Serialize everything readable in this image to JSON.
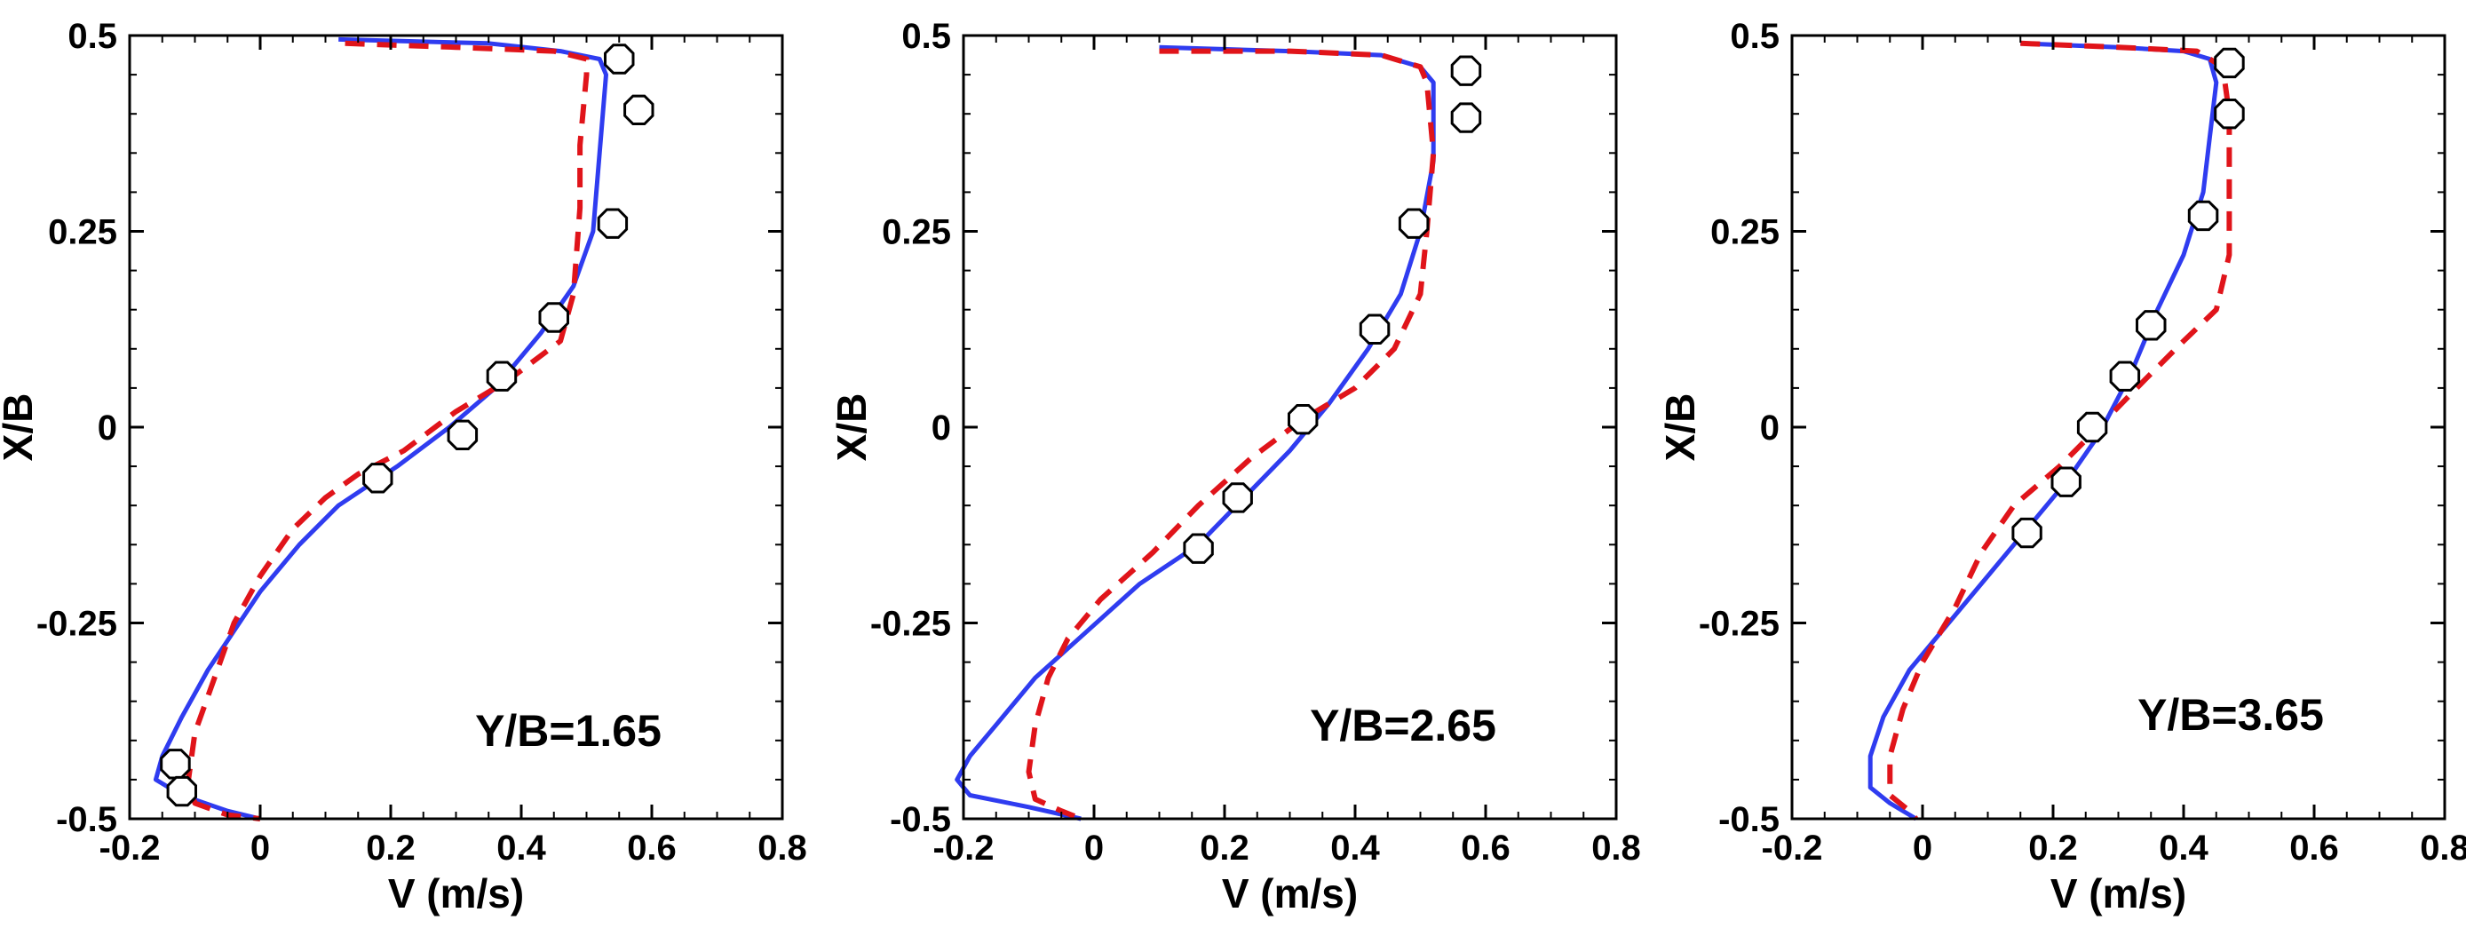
{
  "figure": {
    "legend": [],
    "colors": {
      "solid": "#2f3cf0",
      "dashed": "#e0141a",
      "markers": "#000000"
    }
  },
  "chart_data": [
    {
      "type": "line",
      "annotation": "Y/B=1.65",
      "xlabel": "V (m/s)",
      "ylabel": "X/B",
      "xlim": [
        -0.2,
        0.8
      ],
      "ylim": [
        -0.5,
        0.5
      ],
      "x_ticks": [
        -0.2,
        0,
        0.2,
        0.4,
        0.6,
        0.8
      ],
      "x_tick_labels": [
        "-0.2",
        "0",
        "0.2",
        "0.4",
        "0.6",
        "0.8"
      ],
      "y_ticks": [
        -0.5,
        -0.25,
        0,
        0.25,
        0.5
      ],
      "y_tick_labels": [
        "-0.5",
        "-0.25",
        "0",
        "0.25",
        "0.5"
      ],
      "series": [
        {
          "name": "solid",
          "style": "solid",
          "points": [
            [
              0.12,
              0.495
            ],
            [
              0.35,
              0.49
            ],
            [
              0.46,
              0.48
            ],
            [
              0.52,
              0.47
            ],
            [
              0.53,
              0.45
            ],
            [
              0.52,
              0.35
            ],
            [
              0.51,
              0.25
            ],
            [
              0.48,
              0.18
            ],
            [
              0.43,
              0.12
            ],
            [
              0.36,
              0.05
            ],
            [
              0.29,
              0.0
            ],
            [
              0.21,
              -0.05
            ],
            [
              0.12,
              -0.1
            ],
            [
              0.06,
              -0.15
            ],
            [
              0.0,
              -0.21
            ],
            [
              -0.04,
              -0.26
            ],
            [
              -0.08,
              -0.31
            ],
            [
              -0.12,
              -0.37
            ],
            [
              -0.15,
              -0.42
            ],
            [
              -0.16,
              -0.45
            ],
            [
              -0.12,
              -0.47
            ],
            [
              -0.05,
              -0.49
            ],
            [
              0.0,
              -0.5
            ]
          ]
        },
        {
          "name": "dashed",
          "style": "dashed",
          "points": [
            [
              0.13,
              0.49
            ],
            [
              0.3,
              0.485
            ],
            [
              0.45,
              0.48
            ],
            [
              0.5,
              0.47
            ],
            [
              0.5,
              0.45
            ],
            [
              0.49,
              0.36
            ],
            [
              0.49,
              0.28
            ],
            [
              0.48,
              0.17
            ],
            [
              0.46,
              0.11
            ],
            [
              0.38,
              0.06
            ],
            [
              0.3,
              0.02
            ],
            [
              0.22,
              -0.03
            ],
            [
              0.15,
              -0.06
            ],
            [
              0.1,
              -0.09
            ],
            [
              0.05,
              -0.13
            ],
            [
              0.0,
              -0.19
            ],
            [
              -0.04,
              -0.25
            ],
            [
              -0.07,
              -0.32
            ],
            [
              -0.1,
              -0.39
            ],
            [
              -0.11,
              -0.45
            ],
            [
              -0.1,
              -0.48
            ],
            [
              -0.05,
              -0.495
            ],
            [
              0.0,
              -0.5
            ]
          ]
        }
      ],
      "markers": [
        [
          0.55,
          0.47
        ],
        [
          0.58,
          0.405
        ],
        [
          0.54,
          0.26
        ],
        [
          0.45,
          0.14
        ],
        [
          0.37,
          0.065
        ],
        [
          0.31,
          -0.01
        ],
        [
          0.18,
          -0.065
        ],
        [
          -0.13,
          -0.43
        ],
        [
          -0.12,
          -0.465
        ]
      ]
    },
    {
      "type": "line",
      "annotation": "Y/B=2.65",
      "xlabel": "V (m/s)",
      "ylabel": "X/B",
      "xlim": [
        -0.2,
        0.8
      ],
      "ylim": [
        -0.5,
        0.5
      ],
      "x_ticks": [
        -0.2,
        0,
        0.2,
        0.4,
        0.6,
        0.8
      ],
      "x_tick_labels": [
        "-0.2",
        "0",
        "0.2",
        "0.4",
        "0.6",
        "0.8"
      ],
      "y_ticks": [
        -0.5,
        -0.25,
        0,
        0.25,
        0.5
      ],
      "y_tick_labels": [
        "-0.5",
        "-0.25",
        "0",
        "0.25",
        "0.5"
      ],
      "series": [
        {
          "name": "solid",
          "style": "solid",
          "points": [
            [
              0.1,
              0.485
            ],
            [
              0.3,
              0.48
            ],
            [
              0.44,
              0.475
            ],
            [
              0.5,
              0.46
            ],
            [
              0.52,
              0.44
            ],
            [
              0.52,
              0.34
            ],
            [
              0.5,
              0.25
            ],
            [
              0.47,
              0.17
            ],
            [
              0.42,
              0.1
            ],
            [
              0.36,
              0.03
            ],
            [
              0.3,
              -0.03
            ],
            [
              0.23,
              -0.09
            ],
            [
              0.16,
              -0.15
            ],
            [
              0.07,
              -0.2
            ],
            [
              -0.01,
              -0.26
            ],
            [
              -0.09,
              -0.32
            ],
            [
              -0.15,
              -0.38
            ],
            [
              -0.19,
              -0.42
            ],
            [
              -0.21,
              -0.45
            ],
            [
              -0.19,
              -0.47
            ],
            [
              -0.1,
              -0.485
            ],
            [
              -0.02,
              -0.5
            ]
          ]
        },
        {
          "name": "dashed",
          "style": "dashed",
          "points": [
            [
              0.1,
              0.48
            ],
            [
              0.3,
              0.48
            ],
            [
              0.44,
              0.475
            ],
            [
              0.5,
              0.46
            ],
            [
              0.51,
              0.44
            ],
            [
              0.52,
              0.35
            ],
            [
              0.51,
              0.25
            ],
            [
              0.5,
              0.17
            ],
            [
              0.46,
              0.1
            ],
            [
              0.4,
              0.05
            ],
            [
              0.32,
              0.01
            ],
            [
              0.24,
              -0.04
            ],
            [
              0.16,
              -0.1
            ],
            [
              0.09,
              -0.16
            ],
            [
              0.01,
              -0.22
            ],
            [
              -0.04,
              -0.27
            ],
            [
              -0.07,
              -0.32
            ],
            [
              -0.09,
              -0.38
            ],
            [
              -0.1,
              -0.44
            ],
            [
              -0.09,
              -0.475
            ],
            [
              -0.05,
              -0.49
            ],
            [
              -0.02,
              -0.5
            ]
          ]
        }
      ],
      "markers": [
        [
          0.57,
          0.455
        ],
        [
          0.57,
          0.395
        ],
        [
          0.49,
          0.26
        ],
        [
          0.43,
          0.125
        ],
        [
          0.32,
          0.01
        ],
        [
          0.22,
          -0.09
        ],
        [
          0.16,
          -0.155
        ]
      ]
    },
    {
      "type": "line",
      "annotation": "Y/B=3.65",
      "xlabel": "V (m/s)",
      "ylabel": "X/B",
      "xlim": [
        -0.2,
        0.8
      ],
      "ylim": [
        -0.5,
        0.5
      ],
      "x_ticks": [
        -0.2,
        0,
        0.2,
        0.4,
        0.6,
        0.8
      ],
      "x_tick_labels": [
        "-0.2",
        "0",
        "0.2",
        "0.4",
        "0.6",
        "0.8"
      ],
      "y_ticks": [
        -0.5,
        -0.25,
        0,
        0.25,
        0.5
      ],
      "y_tick_labels": [
        "-0.5",
        "-0.25",
        "0",
        "0.25",
        "0.5"
      ],
      "series": [
        {
          "name": "solid",
          "style": "solid",
          "points": [
            [
              0.15,
              0.49
            ],
            [
              0.3,
              0.485
            ],
            [
              0.4,
              0.48
            ],
            [
              0.44,
              0.47
            ],
            [
              0.45,
              0.44
            ],
            [
              0.44,
              0.37
            ],
            [
              0.43,
              0.3
            ],
            [
              0.4,
              0.22
            ],
            [
              0.36,
              0.15
            ],
            [
              0.32,
              0.07
            ],
            [
              0.27,
              -0.01
            ],
            [
              0.22,
              -0.07
            ],
            [
              0.16,
              -0.13
            ],
            [
              0.1,
              -0.19
            ],
            [
              0.04,
              -0.25
            ],
            [
              -0.02,
              -0.31
            ],
            [
              -0.06,
              -0.37
            ],
            [
              -0.08,
              -0.42
            ],
            [
              -0.08,
              -0.46
            ],
            [
              -0.05,
              -0.48
            ],
            [
              -0.01,
              -0.5
            ]
          ]
        },
        {
          "name": "dashed",
          "style": "dashed",
          "points": [
            [
              0.15,
              0.49
            ],
            [
              0.3,
              0.485
            ],
            [
              0.42,
              0.48
            ],
            [
              0.46,
              0.46
            ],
            [
              0.47,
              0.4
            ],
            [
              0.47,
              0.3
            ],
            [
              0.47,
              0.22
            ],
            [
              0.45,
              0.15
            ],
            [
              0.4,
              0.11
            ],
            [
              0.34,
              0.06
            ],
            [
              0.27,
              0.0
            ],
            [
              0.21,
              -0.05
            ],
            [
              0.14,
              -0.1
            ],
            [
              0.09,
              -0.16
            ],
            [
              0.05,
              -0.23
            ],
            [
              0.0,
              -0.3
            ],
            [
              -0.03,
              -0.36
            ],
            [
              -0.05,
              -0.42
            ],
            [
              -0.05,
              -0.47
            ],
            [
              -0.02,
              -0.49
            ],
            [
              -0.01,
              -0.5
            ]
          ]
        }
      ],
      "markers": [
        [
          0.47,
          0.465
        ],
        [
          0.47,
          0.4
        ],
        [
          0.43,
          0.27
        ],
        [
          0.35,
          0.13
        ],
        [
          0.31,
          0.065
        ],
        [
          0.26,
          0.0
        ],
        [
          0.22,
          -0.07
        ],
        [
          0.16,
          -0.135
        ]
      ]
    }
  ]
}
